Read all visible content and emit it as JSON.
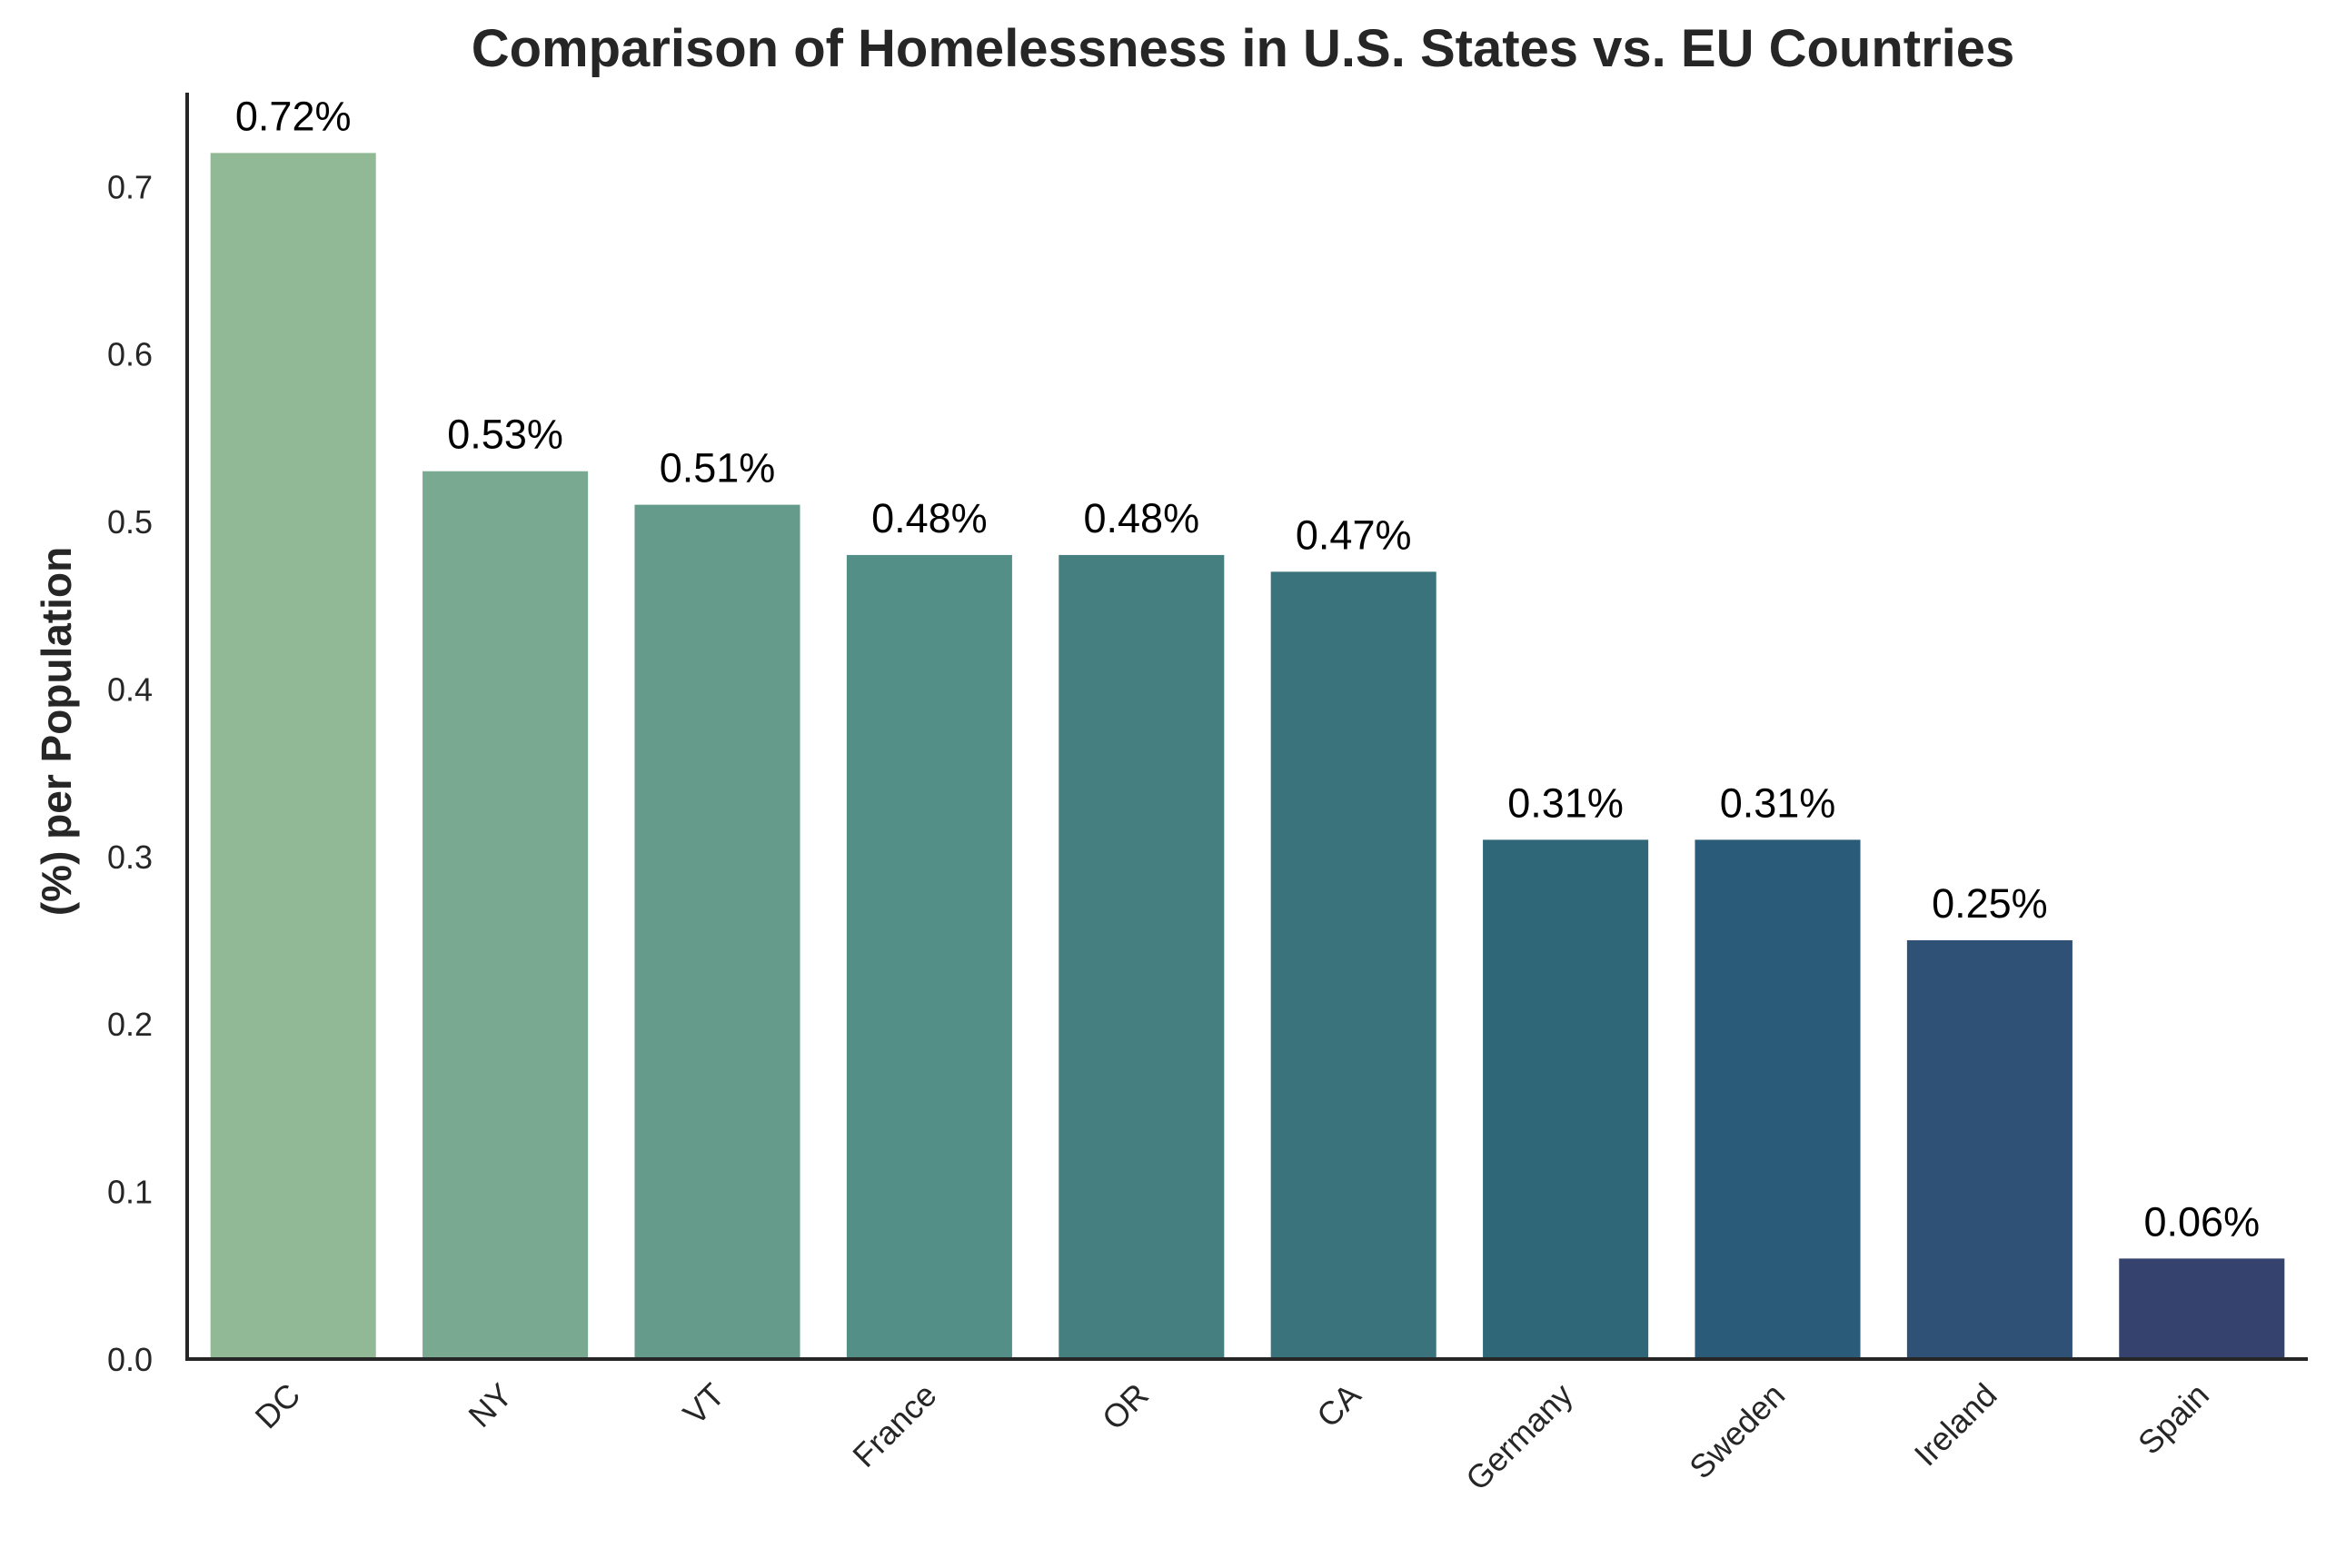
{
  "chart_data": {
    "type": "bar",
    "title": "Comparison of Homelessness in U.S. States vs. EU Countries",
    "xlabel": "",
    "ylabel": "(%) per Population",
    "categories": [
      "DC",
      "NY",
      "VT",
      "France",
      "OR",
      "CA",
      "Germany",
      "Sweden",
      "Ireland",
      "Spain"
    ],
    "values": [
      0.72,
      0.53,
      0.51,
      0.48,
      0.48,
      0.47,
      0.31,
      0.31,
      0.25,
      0.06
    ],
    "data_labels": [
      "0.72%",
      "0.53%",
      "0.51%",
      "0.48%",
      "0.48%",
      "0.47%",
      "0.31%",
      "0.31%",
      "0.25%",
      "0.06%"
    ],
    "colors": [
      "#92b995",
      "#7aa992",
      "#649b8a",
      "#548f87",
      "#467f80",
      "#3a737b",
      "#2f6779",
      "#2a5b78",
      "#2f5175",
      "#34426d"
    ],
    "ylim": [
      0,
      0.756
    ],
    "yticks": [
      0.0,
      0.1,
      0.2,
      0.3,
      0.4,
      0.5,
      0.6,
      0.7
    ],
    "ytick_labels": [
      "0.0",
      "0.1",
      "0.2",
      "0.3",
      "0.4",
      "0.5",
      "0.6",
      "0.7"
    ],
    "grid": false,
    "legend": "none",
    "x_tick_rotation": "45°"
  }
}
